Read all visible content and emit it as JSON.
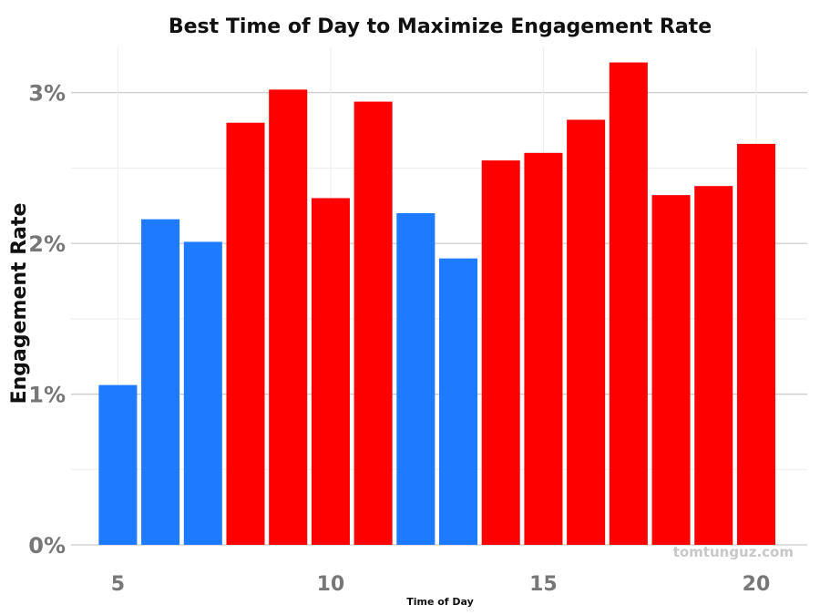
{
  "chart_data": {
    "type": "bar",
    "title": "Best Time of Day to Maximize Engagement Rate",
    "xlabel": "Time of Day",
    "ylabel": "Engagement Rate",
    "x": [
      5,
      6,
      7,
      8,
      9,
      10,
      11,
      12,
      13,
      14,
      15,
      16,
      17,
      18,
      19,
      20
    ],
    "values": [
      1.06,
      2.16,
      2.01,
      2.8,
      3.02,
      2.3,
      2.94,
      2.2,
      1.9,
      2.55,
      2.6,
      2.82,
      3.2,
      2.32,
      2.38,
      2.66
    ],
    "highlight": [
      false,
      false,
      false,
      true,
      true,
      true,
      true,
      false,
      false,
      true,
      true,
      true,
      true,
      true,
      true,
      true
    ],
    "xlim": [
      3.9,
      21.2
    ],
    "ylim": [
      0,
      3.3
    ],
    "x_ticks": [
      5,
      10,
      15,
      20
    ],
    "y_ticks": [
      "0%",
      "1%",
      "2%",
      "3%"
    ],
    "grid": true,
    "colors": {
      "base": "#1e7bff",
      "highlight": "#ff0000",
      "grid": "#cccccc",
      "minor_grid": "#ededed",
      "tick_text": "#777777"
    },
    "watermark": "tomtunguz.com"
  }
}
